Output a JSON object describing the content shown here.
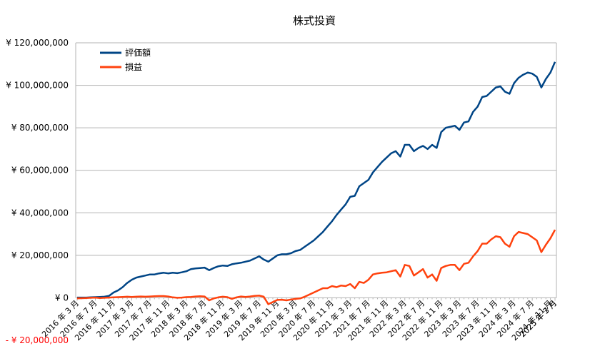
{
  "chart_data": {
    "type": "line",
    "title": "株式投資",
    "xlabel": "",
    "ylabel": "",
    "ylim": [
      -20000000,
      120000000
    ],
    "y_ticks": [
      {
        "value": 120000000,
        "label": "¥ 120,000,000"
      },
      {
        "value": 100000000,
        "label": "¥ 100,000,000"
      },
      {
        "value": 80000000,
        "label": "¥ 80,000,000"
      },
      {
        "value": 60000000,
        "label": "¥ 60,000,000"
      },
      {
        "value": 40000000,
        "label": "¥ 40,000,000"
      },
      {
        "value": 20000000,
        "label": "¥ 20,000,000"
      },
      {
        "value": 0,
        "label": "¥ 0"
      },
      {
        "value": -20000000,
        "label": "- ¥ 20,000,000"
      }
    ],
    "x_tick_labels": [
      "2016 年 3 月",
      "2016 年 7 月",
      "2016 年 11 月",
      "2017 年 3 月",
      "2017 年 7 月",
      "2017 年 11 月",
      "2018 年 3 月",
      "2018 年 7 月",
      "2018 年 11 月",
      "2019 年 3 月",
      "2019 年 7 月",
      "2019 年 11 月",
      "2020 年 3 月",
      "2020 年 7 月",
      "2020 年 11 月",
      "2021 年 3 月",
      "2021 年 7 月",
      "2021 年 11 月",
      "2022 年 3 月",
      "2022 年 7 月",
      "2022 年 11 月",
      "2023 年 3 月",
      "2023 年 7 月",
      "2023 年 11 月",
      "2024 年 3 月",
      "2024 年 7 月",
      "2024 年 11 月",
      "2025 年 3 月",
      "2025 年 7 月"
    ],
    "grid": true,
    "legend": "top-left",
    "series": [
      {
        "name": "評価額",
        "color": "#004586",
        "values": [
          100000,
          100000,
          100000,
          200000,
          300000,
          400000,
          500000,
          900000,
          2500000,
          3500000,
          5000000,
          7000000,
          8500000,
          9500000,
          10000000,
          10500000,
          11000000,
          11000000,
          11500000,
          11800000,
          11500000,
          11800000,
          11600000,
          12000000,
          12500000,
          13500000,
          13800000,
          14000000,
          14200000,
          13000000,
          14000000,
          14800000,
          15200000,
          15000000,
          15800000,
          16200000,
          16500000,
          17000000,
          17500000,
          18500000,
          19500000,
          18000000,
          17000000,
          18500000,
          20000000,
          20500000,
          20500000,
          21000000,
          22000000,
          22500000,
          24000000,
          25500000,
          27000000,
          29000000,
          31000000,
          33500000,
          36000000,
          39000000,
          41500000,
          44000000,
          47500000,
          48000000,
          52500000,
          54000000,
          55500000,
          59000000,
          61500000,
          64000000,
          66000000,
          68000000,
          69000000,
          66500000,
          72000000,
          72000000,
          69000000,
          70500000,
          71500000,
          70000000,
          72000000,
          70500000,
          78000000,
          80000000,
          80500000,
          81000000,
          79000000,
          82500000,
          83000000,
          87500000,
          90000000,
          94500000,
          95000000,
          97000000,
          99000000,
          99500000,
          97000000,
          96000000,
          101000000,
          103500000,
          105000000,
          106000000,
          105500000,
          104000000,
          99000000,
          103000000,
          106000000,
          111000000
        ]
      },
      {
        "name": "損益",
        "color": "#ff420e",
        "values": [
          -300000,
          -200000,
          -100000,
          0,
          100000,
          -100000,
          0,
          100000,
          200000,
          300000,
          400000,
          500000,
          400000,
          500000,
          600000,
          500000,
          600000,
          700000,
          800000,
          800000,
          600000,
          200000,
          0,
          100000,
          300000,
          400000,
          600000,
          700000,
          600000,
          -1200000,
          -300000,
          200000,
          500000,
          300000,
          -500000,
          200000,
          600000,
          400000,
          600000,
          900000,
          1000000,
          500000,
          -3000000,
          -2000000,
          -1000000,
          -900000,
          -1200000,
          -800000,
          -500000,
          -300000,
          500000,
          1500000,
          2500000,
          3500000,
          4500000,
          4500000,
          5500000,
          5000000,
          5800000,
          5500000,
          6500000,
          4500000,
          7500000,
          7000000,
          8500000,
          11000000,
          11500000,
          11800000,
          12000000,
          12500000,
          13000000,
          10000000,
          15500000,
          15000000,
          10500000,
          12000000,
          13500000,
          9500000,
          11000000,
          8000000,
          14000000,
          15000000,
          15500000,
          15500000,
          13000000,
          16000000,
          16500000,
          19500000,
          22000000,
          25500000,
          25500000,
          27500000,
          29000000,
          28500000,
          25500000,
          24000000,
          29000000,
          31000000,
          30500000,
          30000000,
          28500000,
          27000000,
          21500000,
          25000000,
          28000000,
          32000000
        ]
      }
    ]
  }
}
